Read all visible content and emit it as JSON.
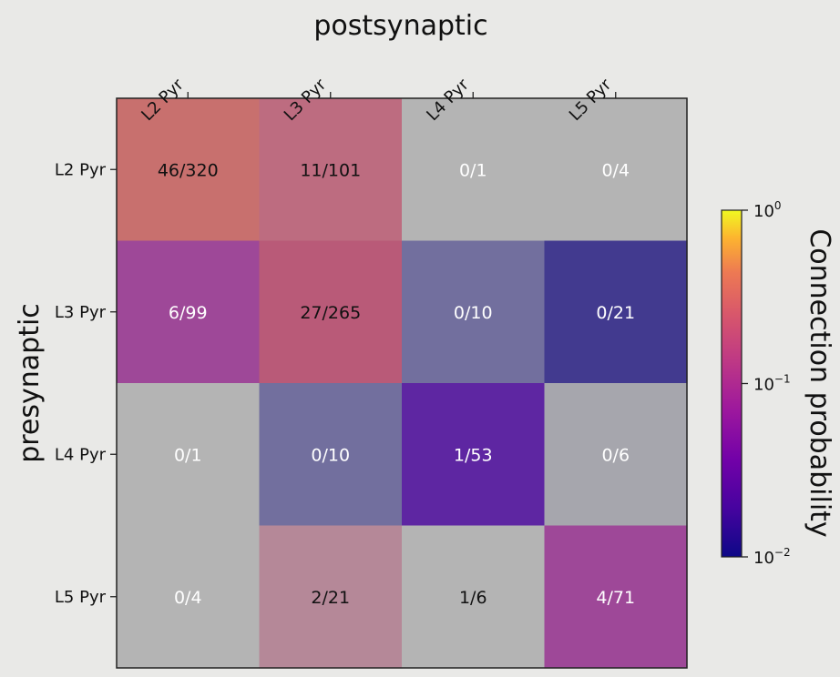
{
  "chart_data": {
    "type": "heatmap",
    "title": "",
    "xlabel": "postsynaptic",
    "ylabel": "presynaptic",
    "x_categories": [
      "L2 Pyr",
      "L3 Pyr",
      "L4 Pyr",
      "L5 Pyr"
    ],
    "y_categories": [
      "L2 Pyr",
      "L3 Pyr",
      "L4 Pyr",
      "L5 Pyr"
    ],
    "cells": [
      [
        {
          "label": "46/320",
          "color": "#c8706e",
          "text_color": "#111111"
        },
        {
          "label": "11/101",
          "color": "#bd6c80",
          "text_color": "#111111"
        },
        {
          "label": "0/1",
          "color": "#b4b4b4",
          "text_color": "#ffffff"
        },
        {
          "label": "0/4",
          "color": "#b4b4b4",
          "text_color": "#ffffff"
        }
      ],
      [
        {
          "label": "6/99",
          "color": "#9e4898",
          "text_color": "#ffffff"
        },
        {
          "label": "27/265",
          "color": "#b95a78",
          "text_color": "#111111"
        },
        {
          "label": "0/10",
          "color": "#726f9e",
          "text_color": "#ffffff"
        },
        {
          "label": "0/21",
          "color": "#423a8f",
          "text_color": "#ffffff"
        }
      ],
      [
        {
          "label": "0/1",
          "color": "#b4b4b4",
          "text_color": "#ffffff"
        },
        {
          "label": "0/10",
          "color": "#726f9e",
          "text_color": "#ffffff"
        },
        {
          "label": "1/53",
          "color": "#5e26a2",
          "text_color": "#ffffff"
        },
        {
          "label": "0/6",
          "color": "#a6a6ad",
          "text_color": "#ffffff"
        }
      ],
      [
        {
          "label": "0/4",
          "color": "#b4b4b4",
          "text_color": "#ffffff"
        },
        {
          "label": "2/21",
          "color": "#b58898",
          "text_color": "#111111"
        },
        {
          "label": "1/6",
          "color": "#b4b4b4",
          "text_color": "#111111"
        },
        {
          "label": "4/71",
          "color": "#9e4898",
          "text_color": "#ffffff"
        }
      ]
    ],
    "colorbar": {
      "label": "Connection probability",
      "scale": "log",
      "range": [
        0.01,
        1
      ],
      "colormap": "plasma",
      "ticks": [
        {
          "value": 1,
          "base": "10",
          "exp": "0"
        },
        {
          "value": 0.1,
          "base": "10",
          "exp": "−1"
        },
        {
          "value": 0.01,
          "base": "10",
          "exp": "−2"
        }
      ]
    }
  }
}
